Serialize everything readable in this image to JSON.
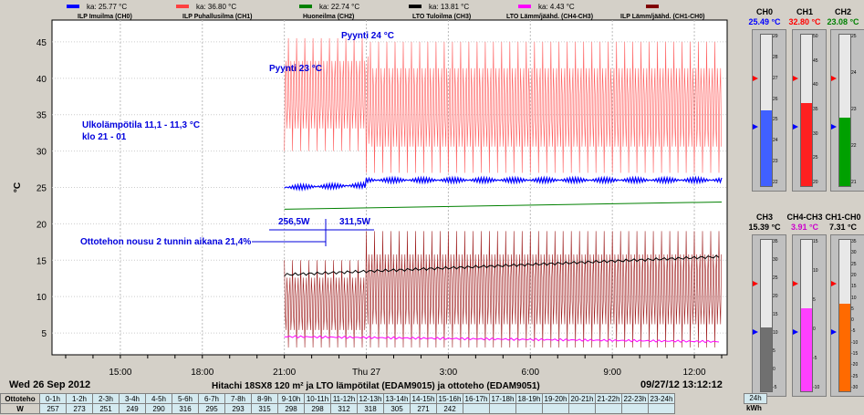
{
  "legend": [
    {
      "avg_label": "ka: 25.77 °C",
      "name": "ILP Imuilma (CH0)",
      "color": "#0000ff"
    },
    {
      "avg_label": "ka: 36.80 °C",
      "name": "ILP Puhallusilma (CH1)",
      "color": "#ff4040"
    },
    {
      "avg_label": "ka: 22.74 °C",
      "name": "Huoneilma (CH2)",
      "color": "#008000"
    },
    {
      "avg_label": "ka: 13.81 °C",
      "name": "LTO Tuloilma (CH3)",
      "color": "#000000"
    },
    {
      "avg_label": "ka: 4.43 °C",
      "name": "LTO Lämm/jäähd. (CH4-CH3)",
      "color": "#ff00ff"
    },
    {
      "avg_label": "",
      "name": "ILP Lämm/jäähd. (CH1-CH0)",
      "color": "#800000"
    }
  ],
  "chart_data": {
    "type": "line",
    "ylabel": "°C",
    "ylim": [
      2,
      48
    ],
    "yticks": [
      5,
      10,
      15,
      20,
      25,
      30,
      35,
      40,
      45
    ],
    "xticks": [
      "15:00",
      "18:00",
      "21:00",
      "Thu 27",
      "3:00",
      "6:00",
      "9:00",
      "12:00"
    ],
    "series": [
      {
        "name": "ILP Imuilma (CH0)",
        "pattern": "start 21:00, ~25.0 rising to ~26.2 after 00:00, small oscillation ±0.5"
      },
      {
        "name": "ILP Puhallusilma (CH1)",
        "pattern": "oscillating",
        "before_midnight": [
          30,
          47
        ],
        "after_midnight": [
          27,
          47
        ]
      },
      {
        "name": "Huoneilma (CH2)",
        "from": [
          22.0,
          23.0
        ],
        "note": "rising slowly 21:00 to 13:00"
      },
      {
        "name": "LTO Tuloilma (CH3)",
        "from": [
          13.0,
          15.5
        ],
        "note": "rising slowly"
      },
      {
        "name": "LTO Lämm/jäähd. (CH4-CH3)",
        "from": [
          4.5,
          3.8
        ],
        "note": "slow decline"
      },
      {
        "name": "ILP Lämm/jäähd. (CH1-CH0)",
        "pattern": "oscillating",
        "range": [
          3,
          20
        ]
      }
    ],
    "annotations": [
      "Pyynti 23 °C",
      "Pyynti 24 °C",
      "Ulkolämpötila 11,1 - 11,3 °C",
      "klo 21 - 01",
      "256,5W",
      "311,5W",
      "Ottotehon nousu 2 tunnin aikana 21,4%"
    ]
  },
  "footer": {
    "date_left": "Wed 26 Sep 2012",
    "title": "Hitachi 18SX8 120 m² ja LTO lämpötilat (EDAM9015) ja ottoteho (EDAM9051)",
    "date_right": "09/27/12 13:12:12"
  },
  "gauges": [
    {
      "name": "CH0",
      "value": "25.49 °C",
      "value_color": "#0000ff",
      "fill": "#4060ff",
      "ticks": [
        "29",
        "28",
        "27",
        "26",
        "25",
        "24",
        "23",
        "22"
      ],
      "fill_frac": 0.5
    },
    {
      "name": "CH1",
      "value": "32.80 °C",
      "value_color": "#ff0000",
      "fill": "#ff2020",
      "ticks": [
        "50",
        "45",
        "40",
        "35",
        "30",
        "25",
        "20"
      ],
      "fill_frac": 0.55
    },
    {
      "name": "CH2",
      "value": "23.08 °C",
      "value_color": "#008000",
      "fill": "#00a000",
      "ticks": [
        "25",
        "24",
        "23",
        "22",
        "21"
      ],
      "fill_frac": 0.45
    },
    {
      "name": "CH3",
      "value": "15.39 °C",
      "value_color": "#000000",
      "fill": "#707070",
      "ticks": [
        "35",
        "30",
        "25",
        "20",
        "15",
        "10",
        "5",
        "0",
        "-5"
      ],
      "fill_frac": 0.42
    },
    {
      "name": "CH4-CH3",
      "value": "3.91 °C",
      "value_color": "#cc00cc",
      "fill": "#ff40ff",
      "ticks": [
        "15",
        "10",
        "5",
        "0",
        "-5",
        "-10"
      ],
      "fill_frac": 0.55
    },
    {
      "name": "CH1-CH0",
      "value": "7.31 °C",
      "value_color": "#000000",
      "fill": "#ff6a00",
      "ticks": [
        "35",
        "30",
        "25",
        "20",
        "15",
        "10",
        "5",
        "0",
        "-5",
        "-10",
        "-15",
        "-20",
        "-25",
        "-30"
      ],
      "fill_frac": 0.58
    }
  ],
  "energy": {
    "row_label_1": "Ottoteho",
    "row_label_2": "W",
    "hours": [
      "0-1h",
      "1-2h",
      "2-3h",
      "3-4h",
      "4-5h",
      "5-6h",
      "6-7h",
      "7-8h",
      "8-9h",
      "9-10h",
      "10-11h",
      "11-12h",
      "12-13h",
      "13-14h",
      "14-15h",
      "15-16h",
      "16-17h",
      "17-18h",
      "18-19h",
      "19-20h",
      "20-21h",
      "21-22h",
      "22-23h",
      "23-24h"
    ],
    "values": [
      "257",
      "273",
      "251",
      "249",
      "290",
      "316",
      "295",
      "293",
      "315",
      "298",
      "298",
      "312",
      "318",
      "305",
      "271",
      "242",
      "",
      "",
      "",
      "",
      "",
      "",
      "",
      ""
    ],
    "total_label": "24h",
    "unit": "kWh"
  }
}
